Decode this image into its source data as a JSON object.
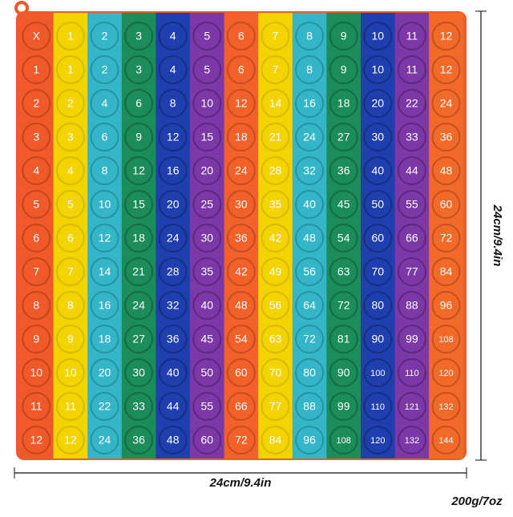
{
  "grid": {
    "rows": [
      [
        "X",
        1,
        2,
        3,
        4,
        5,
        6,
        7,
        8,
        9,
        10,
        11,
        12
      ],
      [
        1,
        1,
        2,
        3,
        4,
        5,
        6,
        7,
        8,
        9,
        10,
        11,
        12
      ],
      [
        2,
        2,
        4,
        6,
        8,
        10,
        12,
        14,
        16,
        18,
        20,
        22,
        24
      ],
      [
        3,
        3,
        6,
        9,
        12,
        15,
        18,
        21,
        24,
        27,
        30,
        33,
        36
      ],
      [
        4,
        4,
        8,
        12,
        16,
        20,
        24,
        28,
        32,
        36,
        40,
        44,
        48
      ],
      [
        5,
        5,
        10,
        15,
        20,
        25,
        30,
        35,
        40,
        45,
        50,
        55,
        60
      ],
      [
        6,
        6,
        12,
        18,
        24,
        30,
        36,
        42,
        48,
        54,
        60,
        66,
        72
      ],
      [
        7,
        7,
        14,
        21,
        28,
        35,
        42,
        49,
        56,
        63,
        70,
        77,
        84
      ],
      [
        8,
        8,
        16,
        24,
        32,
        40,
        48,
        56,
        64,
        72,
        80,
        88,
        96
      ],
      [
        9,
        9,
        18,
        27,
        36,
        45,
        54,
        63,
        72,
        81,
        90,
        99,
        108
      ],
      [
        10,
        10,
        20,
        30,
        40,
        50,
        60,
        70,
        80,
        90,
        100,
        110,
        120
      ],
      [
        11,
        11,
        22,
        33,
        44,
        55,
        66,
        77,
        88,
        99,
        110,
        121,
        132
      ],
      [
        12,
        12,
        24,
        36,
        48,
        60,
        72,
        84,
        96,
        108,
        120,
        132,
        144
      ]
    ]
  },
  "width_label": "24cm/9.4in",
  "height_label": "24cm/9.4in",
  "weight_label": "200g/7oz"
}
